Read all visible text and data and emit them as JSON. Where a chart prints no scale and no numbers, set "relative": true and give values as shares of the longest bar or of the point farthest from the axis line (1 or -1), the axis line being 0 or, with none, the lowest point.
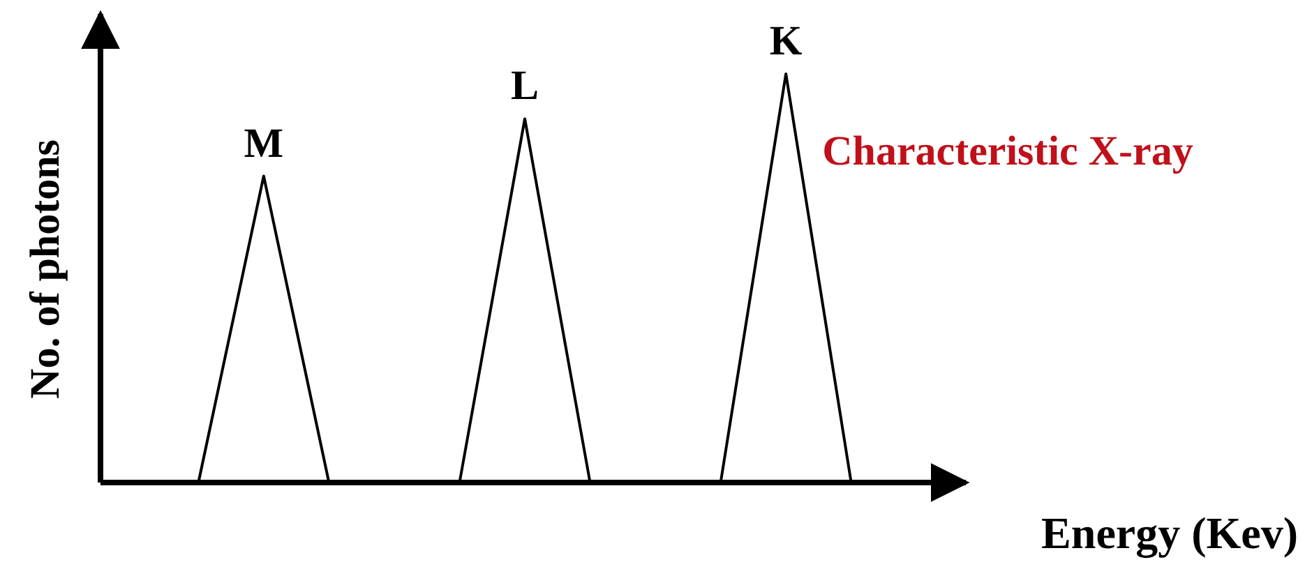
{
  "chart_data": {
    "type": "line",
    "relative": true,
    "xlabel": "Energy (Kev)",
    "ylabel": "No. of photons",
    "categories": [
      null,
      null,
      null,
      null,
      null,
      null,
      null,
      null,
      null,
      null,
      null,
      null,
      null
    ],
    "series": [
      {
        "name": "M",
        "color": "#000000",
        "values": [
          null,
          0,
          0.75,
          0,
          null,
          null,
          null,
          null,
          null,
          null,
          null,
          null,
          null
        ]
      },
      {
        "name": "L",
        "color": "#000000",
        "values": [
          null,
          null,
          null,
          null,
          null,
          0,
          0.89,
          0,
          null,
          null,
          null,
          null,
          null
        ]
      },
      {
        "name": "K",
        "color": "#000000",
        "values": [
          null,
          null,
          null,
          null,
          null,
          null,
          null,
          null,
          null,
          0,
          1,
          0,
          null
        ]
      }
    ],
    "annotations": [
      "Characteristic X-ray"
    ],
    "legend": false,
    "grid": false,
    "marker": "none",
    "line_style": "solid"
  }
}
